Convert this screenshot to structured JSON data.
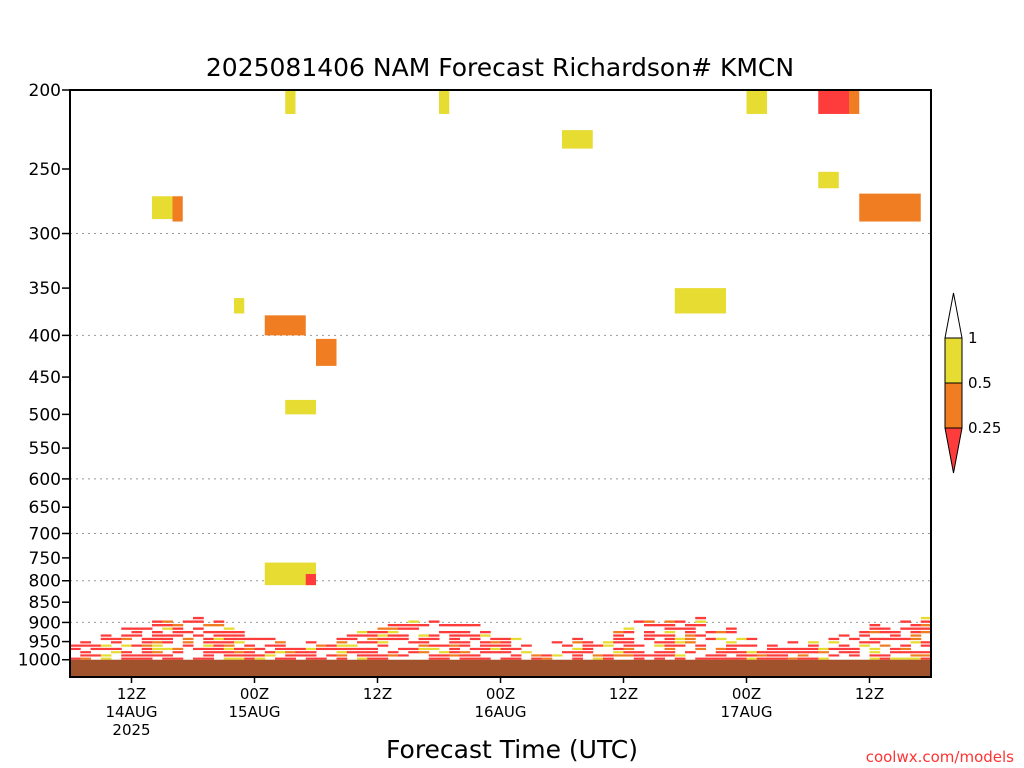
{
  "chart_data": {
    "type": "heatmap",
    "title": "2025081406 NAM Forecast Richardson# KMCN",
    "xlabel": "Forecast Time (UTC)",
    "ylabel": "",
    "y_scale": "log (pressure, inverted)",
    "y_range_hpa": [
      1050,
      200
    ],
    "y_ticks": [
      200,
      250,
      300,
      350,
      400,
      450,
      500,
      550,
      600,
      650,
      700,
      750,
      800,
      850,
      900,
      950,
      1000
    ],
    "y_gridlines": [
      300,
      400,
      600,
      700,
      800,
      900
    ],
    "x_ticks": [
      {
        "time": "2025-08-14T12:00Z",
        "lines": [
          "12Z",
          "14AUG",
          "2025"
        ]
      },
      {
        "time": "2025-08-15T00:00Z",
        "lines": [
          "00Z",
          "15AUG"
        ]
      },
      {
        "time": "2025-08-15T12:00Z",
        "lines": [
          "12Z"
        ]
      },
      {
        "time": "2025-08-16T00:00Z",
        "lines": [
          "00Z",
          "16AUG"
        ]
      },
      {
        "time": "2025-08-16T12:00Z",
        "lines": [
          "12Z"
        ]
      },
      {
        "time": "2025-08-17T00:00Z",
        "lines": [
          "00Z",
          "17AUG"
        ]
      },
      {
        "time": "2025-08-17T12:00Z",
        "lines": [
          "12Z"
        ]
      }
    ],
    "x_range": [
      "2025-08-14T06:00Z",
      "2025-08-17T18:00Z"
    ],
    "colorbar": {
      "levels": [
        "0.25",
        "0.5",
        "1"
      ],
      "colors": {
        "above_1": "#ffffff",
        "0.5-1": "#e6dc32",
        "0.25-0.5": "#f07d21",
        "below_0.25": "#ff3c3c"
      }
    },
    "ground_color": "#a0522d",
    "regions": [
      {
        "t0": "2025-08-15T03:00Z",
        "t1": "2025-08-15T04:00Z",
        "p0": 200,
        "p1": 214,
        "cls": "0.5-1"
      },
      {
        "t0": "2025-08-15T18:00Z",
        "t1": "2025-08-15T19:00Z",
        "p0": 200,
        "p1": 214,
        "cls": "0.5-1"
      },
      {
        "t0": "2025-08-16T06:00Z",
        "t1": "2025-08-16T09:00Z",
        "p0": 224,
        "p1": 236,
        "cls": "0.5-1"
      },
      {
        "t0": "2025-08-17T00:00Z",
        "t1": "2025-08-17T02:00Z",
        "p0": 200,
        "p1": 214,
        "cls": "0.5-1"
      },
      {
        "t0": "2025-08-17T07:00Z",
        "t1": "2025-08-17T10:00Z",
        "p0": 200,
        "p1": 214,
        "cls": "below_0.25"
      },
      {
        "t0": "2025-08-17T10:00Z",
        "t1": "2025-08-17T11:00Z",
        "p0": 200,
        "p1": 214,
        "cls": "0.25-0.5"
      },
      {
        "t0": "2025-08-17T07:00Z",
        "t1": "2025-08-17T09:00Z",
        "p0": 252,
        "p1": 264,
        "cls": "0.5-1"
      },
      {
        "t0": "2025-08-17T11:00Z",
        "t1": "2025-08-17T17:00Z",
        "p0": 268,
        "p1": 290,
        "cls": "0.25-0.5"
      },
      {
        "t0": "2025-08-14T14:00Z",
        "t1": "2025-08-14T16:00Z",
        "p0": 270,
        "p1": 288,
        "cls": "0.5-1"
      },
      {
        "t0": "2025-08-14T16:00Z",
        "t1": "2025-08-14T17:00Z",
        "p0": 270,
        "p1": 290,
        "cls": "0.25-0.5"
      },
      {
        "t0": "2025-08-14T22:00Z",
        "t1": "2025-08-14T23:00Z",
        "p0": 360,
        "p1": 376,
        "cls": "0.5-1"
      },
      {
        "t0": "2025-08-15T01:00Z",
        "t1": "2025-08-15T05:00Z",
        "p0": 378,
        "p1": 400,
        "cls": "0.25-0.5"
      },
      {
        "t0": "2025-08-15T06:00Z",
        "t1": "2025-08-15T08:00Z",
        "p0": 404,
        "p1": 436,
        "cls": "0.25-0.5"
      },
      {
        "t0": "2025-08-15T03:00Z",
        "t1": "2025-08-15T06:00Z",
        "p0": 480,
        "p1": 500,
        "cls": "0.5-1"
      },
      {
        "t0": "2025-08-16T17:00Z",
        "t1": "2025-08-16T22:00Z",
        "p0": 350,
        "p1": 376,
        "cls": "0.5-1"
      },
      {
        "t0": "2025-08-15T01:00Z",
        "t1": "2025-08-15T06:00Z",
        "p0": 760,
        "p1": 810,
        "cls": "0.5-1"
      },
      {
        "t0": "2025-08-15T05:00Z",
        "t1": "2025-08-15T06:00Z",
        "p0": 785,
        "p1": 810,
        "cls": "below_0.25"
      }
    ]
  },
  "credit": "coolwx.com/models"
}
